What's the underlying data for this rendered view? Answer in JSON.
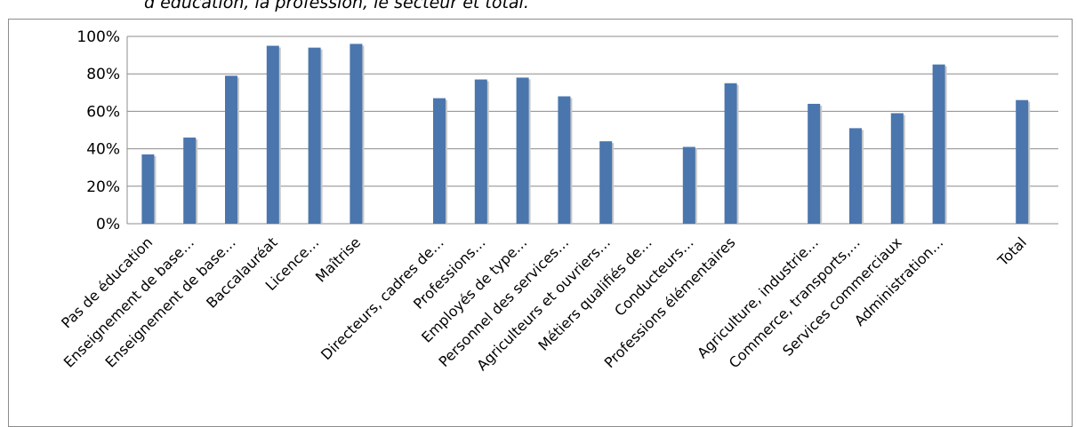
{
  "caption": "d’éducation, la profession, le secteur et total.",
  "chart_data": {
    "type": "bar",
    "title": "",
    "xlabel": "",
    "ylabel": "",
    "ylim": [
      0,
      100
    ],
    "y_ticks": [
      "0%",
      "20%",
      "40%",
      "60%",
      "80%",
      "100%"
    ],
    "grid": true,
    "legend": "none",
    "bar_color": "#4a76ad",
    "categories": [
      "Pas de éducation",
      "Enseignement de base…",
      "Enseignement de base…",
      "Baccalauréat",
      "Licence…",
      "Maîtrise",
      "",
      "Directeurs, cadres de…",
      "Professions…",
      "Employés de type…",
      "Personnel des services…",
      "Agriculteurs et ouvriers…",
      "Métiers qualifiés de…",
      "Conducteurs…",
      "Professions élémentaires",
      "",
      "Agriculture, industrie…",
      "Commerce, transports,…",
      "Services commerciaux",
      "Administration…",
      "",
      "Total"
    ],
    "values": [
      37,
      46,
      79,
      95,
      94,
      96,
      null,
      67,
      77,
      78,
      68,
      44,
      null,
      41,
      75,
      null,
      64,
      51,
      59,
      85,
      null,
      66
    ]
  }
}
